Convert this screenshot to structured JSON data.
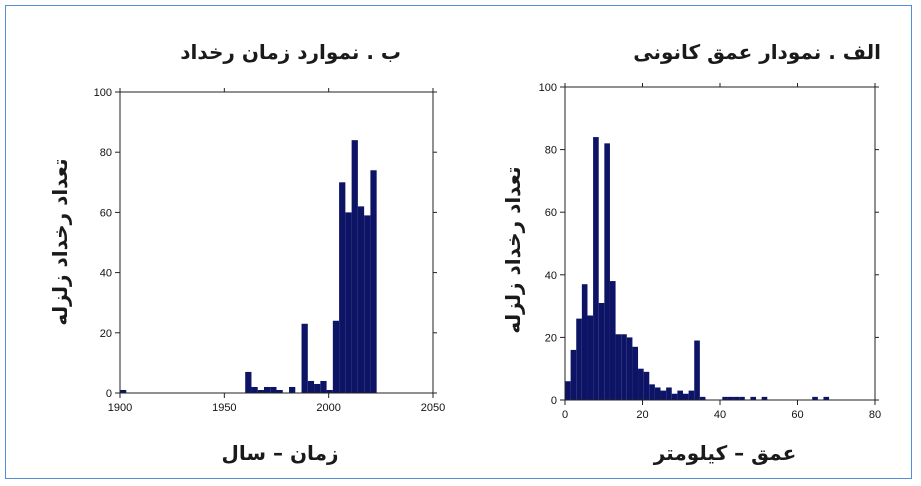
{
  "chart_data": [
    {
      "id": "time",
      "type": "bar",
      "title": "ب . نموارد زمان رخداد",
      "xlabel": "زمان – سال",
      "ylabel": "تعداد رخداد زلزله",
      "xlim": [
        1900,
        2050
      ],
      "ylim": [
        0,
        100
      ],
      "xticks": [
        1900,
        1950,
        2000,
        2050
      ],
      "yticks": [
        0,
        20,
        40,
        60,
        80,
        100
      ],
      "bin_width": 3,
      "bars": [
        {
          "x": 1900,
          "y": 1
        },
        {
          "x": 1960,
          "y": 7
        },
        {
          "x": 1963,
          "y": 2
        },
        {
          "x": 1966,
          "y": 1
        },
        {
          "x": 1969,
          "y": 2
        },
        {
          "x": 1972,
          "y": 2
        },
        {
          "x": 1975,
          "y": 1
        },
        {
          "x": 1981,
          "y": 2
        },
        {
          "x": 1987,
          "y": 23
        },
        {
          "x": 1990,
          "y": 4
        },
        {
          "x": 1993,
          "y": 3
        },
        {
          "x": 1996,
          "y": 4
        },
        {
          "x": 1999,
          "y": 1
        },
        {
          "x": 2002,
          "y": 24
        },
        {
          "x": 2005,
          "y": 70
        },
        {
          "x": 2008,
          "y": 60
        },
        {
          "x": 2011,
          "y": 84
        },
        {
          "x": 2014,
          "y": 62
        },
        {
          "x": 2017,
          "y": 59
        },
        {
          "x": 2020,
          "y": 74
        }
      ],
      "bar_color": "#0d1466"
    },
    {
      "id": "depth",
      "type": "bar",
      "title": "الف . نمودار عمق کانونی",
      "xlabel": "عمق – کیلومتر",
      "ylabel": "تعداد رخداد زلزله",
      "xlim": [
        0,
        80
      ],
      "ylim": [
        0,
        100
      ],
      "xticks": [
        0,
        20,
        40,
        60,
        80
      ],
      "yticks": [
        0,
        20,
        40,
        60,
        80,
        100
      ],
      "bin_width": 1.45,
      "bars": [
        {
          "x": 0,
          "y": 6
        },
        {
          "x": 1.45,
          "y": 16
        },
        {
          "x": 2.9,
          "y": 26
        },
        {
          "x": 4.35,
          "y": 37
        },
        {
          "x": 5.8,
          "y": 27
        },
        {
          "x": 7.25,
          "y": 84
        },
        {
          "x": 8.7,
          "y": 31
        },
        {
          "x": 10.15,
          "y": 82
        },
        {
          "x": 11.6,
          "y": 38
        },
        {
          "x": 13.05,
          "y": 21
        },
        {
          "x": 14.5,
          "y": 21
        },
        {
          "x": 15.95,
          "y": 20
        },
        {
          "x": 17.4,
          "y": 17
        },
        {
          "x": 18.85,
          "y": 10
        },
        {
          "x": 20.3,
          "y": 9
        },
        {
          "x": 21.75,
          "y": 5
        },
        {
          "x": 23.2,
          "y": 4
        },
        {
          "x": 24.65,
          "y": 3
        },
        {
          "x": 26.1,
          "y": 4
        },
        {
          "x": 27.55,
          "y": 2
        },
        {
          "x": 29,
          "y": 3
        },
        {
          "x": 30.45,
          "y": 2
        },
        {
          "x": 31.9,
          "y": 3
        },
        {
          "x": 33.35,
          "y": 19
        },
        {
          "x": 34.8,
          "y": 1
        },
        {
          "x": 40.6,
          "y": 1
        },
        {
          "x": 42.05,
          "y": 1
        },
        {
          "x": 43.5,
          "y": 1
        },
        {
          "x": 44.95,
          "y": 1
        },
        {
          "x": 47.85,
          "y": 1
        },
        {
          "x": 50.75,
          "y": 1
        },
        {
          "x": 63.8,
          "y": 1
        },
        {
          "x": 66.7,
          "y": 1
        }
      ],
      "bar_color": "#0d1466"
    }
  ]
}
